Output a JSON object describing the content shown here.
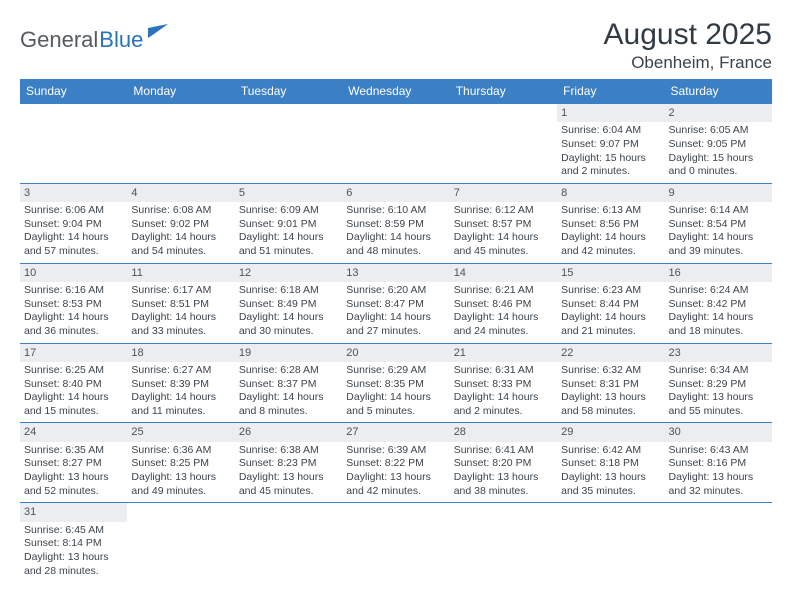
{
  "logo": {
    "general": "General",
    "blue": "Blue"
  },
  "title": "August 2025",
  "location": "Obenheim, France",
  "day_headers": [
    "Sunday",
    "Monday",
    "Tuesday",
    "Wednesday",
    "Thursday",
    "Friday",
    "Saturday"
  ],
  "colors": {
    "header_bg": "#3b7fc4",
    "header_text": "#ffffff",
    "daynum_bg": "#ebedee",
    "border": "#3b7fc4",
    "text": "#3c444c"
  },
  "weeks": [
    [
      {
        "n": "",
        "sunrise": "",
        "sunset": "",
        "daylight": "",
        "empty": true
      },
      {
        "n": "",
        "sunrise": "",
        "sunset": "",
        "daylight": "",
        "empty": true
      },
      {
        "n": "",
        "sunrise": "",
        "sunset": "",
        "daylight": "",
        "empty": true
      },
      {
        "n": "",
        "sunrise": "",
        "sunset": "",
        "daylight": "",
        "empty": true
      },
      {
        "n": "",
        "sunrise": "",
        "sunset": "",
        "daylight": "",
        "empty": true
      },
      {
        "n": "1",
        "sunrise": "Sunrise: 6:04 AM",
        "sunset": "Sunset: 9:07 PM",
        "daylight": "Daylight: 15 hours and 2 minutes."
      },
      {
        "n": "2",
        "sunrise": "Sunrise: 6:05 AM",
        "sunset": "Sunset: 9:05 PM",
        "daylight": "Daylight: 15 hours and 0 minutes."
      }
    ],
    [
      {
        "n": "3",
        "sunrise": "Sunrise: 6:06 AM",
        "sunset": "Sunset: 9:04 PM",
        "daylight": "Daylight: 14 hours and 57 minutes."
      },
      {
        "n": "4",
        "sunrise": "Sunrise: 6:08 AM",
        "sunset": "Sunset: 9:02 PM",
        "daylight": "Daylight: 14 hours and 54 minutes."
      },
      {
        "n": "5",
        "sunrise": "Sunrise: 6:09 AM",
        "sunset": "Sunset: 9:01 PM",
        "daylight": "Daylight: 14 hours and 51 minutes."
      },
      {
        "n": "6",
        "sunrise": "Sunrise: 6:10 AM",
        "sunset": "Sunset: 8:59 PM",
        "daylight": "Daylight: 14 hours and 48 minutes."
      },
      {
        "n": "7",
        "sunrise": "Sunrise: 6:12 AM",
        "sunset": "Sunset: 8:57 PM",
        "daylight": "Daylight: 14 hours and 45 minutes."
      },
      {
        "n": "8",
        "sunrise": "Sunrise: 6:13 AM",
        "sunset": "Sunset: 8:56 PM",
        "daylight": "Daylight: 14 hours and 42 minutes."
      },
      {
        "n": "9",
        "sunrise": "Sunrise: 6:14 AM",
        "sunset": "Sunset: 8:54 PM",
        "daylight": "Daylight: 14 hours and 39 minutes."
      }
    ],
    [
      {
        "n": "10",
        "sunrise": "Sunrise: 6:16 AM",
        "sunset": "Sunset: 8:53 PM",
        "daylight": "Daylight: 14 hours and 36 minutes."
      },
      {
        "n": "11",
        "sunrise": "Sunrise: 6:17 AM",
        "sunset": "Sunset: 8:51 PM",
        "daylight": "Daylight: 14 hours and 33 minutes."
      },
      {
        "n": "12",
        "sunrise": "Sunrise: 6:18 AM",
        "sunset": "Sunset: 8:49 PM",
        "daylight": "Daylight: 14 hours and 30 minutes."
      },
      {
        "n": "13",
        "sunrise": "Sunrise: 6:20 AM",
        "sunset": "Sunset: 8:47 PM",
        "daylight": "Daylight: 14 hours and 27 minutes."
      },
      {
        "n": "14",
        "sunrise": "Sunrise: 6:21 AM",
        "sunset": "Sunset: 8:46 PM",
        "daylight": "Daylight: 14 hours and 24 minutes."
      },
      {
        "n": "15",
        "sunrise": "Sunrise: 6:23 AM",
        "sunset": "Sunset: 8:44 PM",
        "daylight": "Daylight: 14 hours and 21 minutes."
      },
      {
        "n": "16",
        "sunrise": "Sunrise: 6:24 AM",
        "sunset": "Sunset: 8:42 PM",
        "daylight": "Daylight: 14 hours and 18 minutes."
      }
    ],
    [
      {
        "n": "17",
        "sunrise": "Sunrise: 6:25 AM",
        "sunset": "Sunset: 8:40 PM",
        "daylight": "Daylight: 14 hours and 15 minutes."
      },
      {
        "n": "18",
        "sunrise": "Sunrise: 6:27 AM",
        "sunset": "Sunset: 8:39 PM",
        "daylight": "Daylight: 14 hours and 11 minutes."
      },
      {
        "n": "19",
        "sunrise": "Sunrise: 6:28 AM",
        "sunset": "Sunset: 8:37 PM",
        "daylight": "Daylight: 14 hours and 8 minutes."
      },
      {
        "n": "20",
        "sunrise": "Sunrise: 6:29 AM",
        "sunset": "Sunset: 8:35 PM",
        "daylight": "Daylight: 14 hours and 5 minutes."
      },
      {
        "n": "21",
        "sunrise": "Sunrise: 6:31 AM",
        "sunset": "Sunset: 8:33 PM",
        "daylight": "Daylight: 14 hours and 2 minutes."
      },
      {
        "n": "22",
        "sunrise": "Sunrise: 6:32 AM",
        "sunset": "Sunset: 8:31 PM",
        "daylight": "Daylight: 13 hours and 58 minutes."
      },
      {
        "n": "23",
        "sunrise": "Sunrise: 6:34 AM",
        "sunset": "Sunset: 8:29 PM",
        "daylight": "Daylight: 13 hours and 55 minutes."
      }
    ],
    [
      {
        "n": "24",
        "sunrise": "Sunrise: 6:35 AM",
        "sunset": "Sunset: 8:27 PM",
        "daylight": "Daylight: 13 hours and 52 minutes."
      },
      {
        "n": "25",
        "sunrise": "Sunrise: 6:36 AM",
        "sunset": "Sunset: 8:25 PM",
        "daylight": "Daylight: 13 hours and 49 minutes."
      },
      {
        "n": "26",
        "sunrise": "Sunrise: 6:38 AM",
        "sunset": "Sunset: 8:23 PM",
        "daylight": "Daylight: 13 hours and 45 minutes."
      },
      {
        "n": "27",
        "sunrise": "Sunrise: 6:39 AM",
        "sunset": "Sunset: 8:22 PM",
        "daylight": "Daylight: 13 hours and 42 minutes."
      },
      {
        "n": "28",
        "sunrise": "Sunrise: 6:41 AM",
        "sunset": "Sunset: 8:20 PM",
        "daylight": "Daylight: 13 hours and 38 minutes."
      },
      {
        "n": "29",
        "sunrise": "Sunrise: 6:42 AM",
        "sunset": "Sunset: 8:18 PM",
        "daylight": "Daylight: 13 hours and 35 minutes."
      },
      {
        "n": "30",
        "sunrise": "Sunrise: 6:43 AM",
        "sunset": "Sunset: 8:16 PM",
        "daylight": "Daylight: 13 hours and 32 minutes."
      }
    ],
    [
      {
        "n": "31",
        "sunrise": "Sunrise: 6:45 AM",
        "sunset": "Sunset: 8:14 PM",
        "daylight": "Daylight: 13 hours and 28 minutes."
      },
      {
        "n": "",
        "sunrise": "",
        "sunset": "",
        "daylight": "",
        "empty": true
      },
      {
        "n": "",
        "sunrise": "",
        "sunset": "",
        "daylight": "",
        "empty": true
      },
      {
        "n": "",
        "sunrise": "",
        "sunset": "",
        "daylight": "",
        "empty": true
      },
      {
        "n": "",
        "sunrise": "",
        "sunset": "",
        "daylight": "",
        "empty": true
      },
      {
        "n": "",
        "sunrise": "",
        "sunset": "",
        "daylight": "",
        "empty": true
      },
      {
        "n": "",
        "sunrise": "",
        "sunset": "",
        "daylight": "",
        "empty": true
      }
    ]
  ]
}
